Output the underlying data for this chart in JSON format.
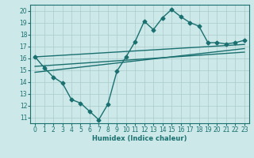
{
  "line1_x": [
    0,
    1,
    2,
    3,
    4,
    5,
    6,
    7,
    8,
    9,
    10,
    11,
    12,
    13,
    14,
    15,
    16,
    17,
    18,
    19,
    20,
    21,
    22,
    23
  ],
  "line1_y": [
    16.1,
    15.2,
    14.4,
    13.9,
    12.5,
    12.2,
    11.5,
    10.8,
    12.1,
    14.9,
    16.1,
    17.4,
    19.1,
    18.4,
    19.4,
    20.1,
    19.5,
    19.0,
    18.7,
    17.3,
    17.3,
    17.2,
    17.3,
    17.5
  ],
  "line2_x": [
    0,
    23
  ],
  "line2_y": [
    16.1,
    17.15
  ],
  "line3_x": [
    0,
    23
  ],
  "line3_y": [
    14.8,
    16.8
  ],
  "line4_x": [
    0,
    23
  ],
  "line4_y": [
    15.3,
    16.5
  ],
  "color": "#1a7070",
  "bg_color": "#cce8e8",
  "grid_color": "#aacccc",
  "xlabel": "Humidex (Indice chaleur)",
  "ylim": [
    10.5,
    20.5
  ],
  "xlim": [
    -0.5,
    23.5
  ],
  "yticks": [
    11,
    12,
    13,
    14,
    15,
    16,
    17,
    18,
    19,
    20
  ],
  "xticks": [
    0,
    1,
    2,
    3,
    4,
    5,
    6,
    7,
    8,
    9,
    10,
    11,
    12,
    13,
    14,
    15,
    16,
    17,
    18,
    19,
    20,
    21,
    22,
    23
  ],
  "xtick_labels": [
    "0",
    "1",
    "2",
    "3",
    "4",
    "5",
    "6",
    "7",
    "8",
    "9",
    "10",
    "11",
    "12",
    "13",
    "14",
    "15",
    "16",
    "17",
    "18",
    "19",
    "20",
    "21",
    "22",
    "23"
  ],
  "marker": "D",
  "marker_size": 2.5,
  "line_width": 1.0
}
